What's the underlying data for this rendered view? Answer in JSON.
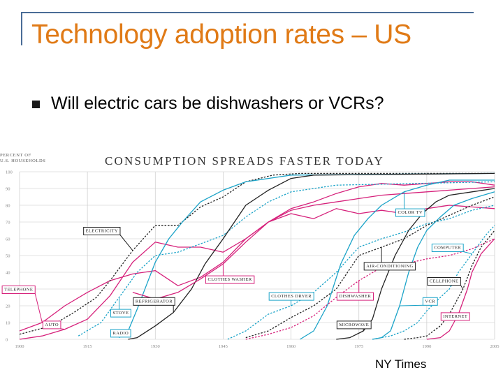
{
  "slide": {
    "title": "Technology adoption rates – US",
    "bullet": "Will electric cars be dishwashers or VCRs?",
    "credit": "NY Times"
  },
  "colors": {
    "title": "#e07a16",
    "frame": "#4a6d97",
    "black": "#222222",
    "pink": "#d6217b",
    "blue": "#1aa3c8"
  },
  "chart_data": {
    "type": "line",
    "title": "CONSUMPTION SPREADS FASTER TODAY",
    "ylabel_lines": [
      "PERCENT OF",
      "U.S. HOUSEHOLDS"
    ],
    "xlim": [
      1900,
      2005
    ],
    "ylim": [
      0,
      100
    ],
    "x_ticks": [
      1900,
      1915,
      1930,
      1945,
      1960,
      1975,
      1990,
      2005
    ],
    "y_ticks": [
      0,
      10,
      20,
      30,
      40,
      50,
      60,
      70,
      80,
      90,
      100
    ],
    "grid": true,
    "series": [
      {
        "name": "TELEPHONE",
        "color": "pink",
        "dashed": false,
        "points": [
          [
            1900,
            5
          ],
          [
            1905,
            10
          ],
          [
            1910,
            20
          ],
          [
            1915,
            28
          ],
          [
            1920,
            35
          ],
          [
            1925,
            39
          ],
          [
            1930,
            41
          ],
          [
            1935,
            32
          ],
          [
            1940,
            37
          ],
          [
            1945,
            46
          ],
          [
            1950,
            60
          ],
          [
            1955,
            70
          ],
          [
            1960,
            78
          ],
          [
            1965,
            82
          ],
          [
            1970,
            87
          ],
          [
            1975,
            91
          ],
          [
            1980,
            93
          ],
          [
            1985,
            92
          ],
          [
            1990,
            93
          ],
          [
            1995,
            94
          ],
          [
            2000,
            94
          ],
          [
            2005,
            92
          ]
        ]
      },
      {
        "name": "AUTO",
        "color": "pink",
        "dashed": false,
        "points": [
          [
            1900,
            0
          ],
          [
            1905,
            2
          ],
          [
            1910,
            6
          ],
          [
            1915,
            12
          ],
          [
            1920,
            26
          ],
          [
            1925,
            46
          ],
          [
            1930,
            58
          ],
          [
            1935,
            55
          ],
          [
            1940,
            55
          ],
          [
            1945,
            52
          ],
          [
            1950,
            60
          ],
          [
            1955,
            70
          ],
          [
            1960,
            77
          ],
          [
            1965,
            80
          ],
          [
            1970,
            82
          ],
          [
            1975,
            84
          ],
          [
            1980,
            86
          ],
          [
            1985,
            87
          ],
          [
            1990,
            88
          ],
          [
            1995,
            89
          ],
          [
            2000,
            90
          ],
          [
            2005,
            91
          ]
        ]
      },
      {
        "name": "ELECTRICITY",
        "color": "black",
        "dashed": true,
        "points": [
          [
            1900,
            3
          ],
          [
            1907,
            8
          ],
          [
            1912,
            16
          ],
          [
            1917,
            25
          ],
          [
            1920,
            35
          ],
          [
            1925,
            53
          ],
          [
            1930,
            68
          ],
          [
            1935,
            68
          ],
          [
            1940,
            79
          ],
          [
            1945,
            85
          ],
          [
            1950,
            94
          ],
          [
            1956,
            98
          ],
          [
            1962,
            99
          ],
          [
            2005,
            99
          ]
        ]
      },
      {
        "name": "RADIO",
        "color": "blue",
        "dashed": false,
        "points": [
          [
            1922,
            1
          ],
          [
            1924,
            5
          ],
          [
            1926,
            18
          ],
          [
            1928,
            32
          ],
          [
            1930,
            46
          ],
          [
            1933,
            60
          ],
          [
            1936,
            70
          ],
          [
            1940,
            82
          ],
          [
            1945,
            89
          ],
          [
            1950,
            94
          ],
          [
            1955,
            96
          ],
          [
            1960,
            98
          ],
          [
            2005,
            99
          ]
        ]
      },
      {
        "name": "STOVE",
        "color": "blue",
        "dashed": true,
        "points": [
          [
            1913,
            2
          ],
          [
            1918,
            10
          ],
          [
            1922,
            25
          ],
          [
            1926,
            40
          ],
          [
            1930,
            50
          ],
          [
            1935,
            52
          ],
          [
            1940,
            57
          ],
          [
            1945,
            62
          ],
          [
            1950,
            73
          ],
          [
            1955,
            82
          ],
          [
            1960,
            88
          ],
          [
            1965,
            90
          ],
          [
            1970,
            92
          ],
          [
            2005,
            94
          ]
        ]
      },
      {
        "name": "REFRIGERATOR",
        "color": "black",
        "dashed": false,
        "points": [
          [
            1924,
            0
          ],
          [
            1926,
            1
          ],
          [
            1930,
            8
          ],
          [
            1934,
            16
          ],
          [
            1938,
            30
          ],
          [
            1941,
            45
          ],
          [
            1945,
            60
          ],
          [
            1950,
            80
          ],
          [
            1955,
            89
          ],
          [
            1960,
            96
          ],
          [
            1965,
            98
          ],
          [
            2005,
            99
          ]
        ]
      },
      {
        "name": "CLOTHES WASHER",
        "color": "pink",
        "dashed": false,
        "points": [
          [
            1925,
            28
          ],
          [
            1930,
            24
          ],
          [
            1935,
            28
          ],
          [
            1940,
            36
          ],
          [
            1945,
            45
          ],
          [
            1950,
            58
          ],
          [
            1955,
            70
          ],
          [
            1960,
            75
          ],
          [
            1965,
            72
          ],
          [
            1970,
            78
          ],
          [
            1975,
            75
          ],
          [
            1980,
            77
          ],
          [
            1985,
            75
          ],
          [
            1990,
            78
          ],
          [
            1995,
            80
          ],
          [
            2000,
            79
          ],
          [
            2005,
            78
          ]
        ]
      },
      {
        "name": "CLOTHES DRYER",
        "color": "blue",
        "dashed": true,
        "points": [
          [
            1946,
            0
          ],
          [
            1950,
            5
          ],
          [
            1955,
            15
          ],
          [
            1960,
            20
          ],
          [
            1965,
            28
          ],
          [
            1970,
            40
          ],
          [
            1975,
            55
          ],
          [
            1980,
            60
          ],
          [
            1985,
            64
          ],
          [
            1990,
            69
          ],
          [
            1995,
            72
          ],
          [
            2000,
            77
          ],
          [
            2005,
            80
          ]
        ]
      },
      {
        "name": "AIR-CONDITIONING",
        "color": "black",
        "dashed": true,
        "points": [
          [
            1950,
            1
          ],
          [
            1955,
            5
          ],
          [
            1960,
            13
          ],
          [
            1965,
            20
          ],
          [
            1970,
            30
          ],
          [
            1975,
            50
          ],
          [
            1980,
            55
          ],
          [
            1985,
            60
          ],
          [
            1990,
            68
          ],
          [
            1995,
            74
          ],
          [
            2000,
            80
          ],
          [
            2005,
            85
          ]
        ]
      },
      {
        "name": "DISHWASHER",
        "color": "pink",
        "dashed": true,
        "points": [
          [
            1950,
            0
          ],
          [
            1955,
            3
          ],
          [
            1960,
            7
          ],
          [
            1965,
            14
          ],
          [
            1970,
            25
          ],
          [
            1975,
            35
          ],
          [
            1980,
            43
          ],
          [
            1985,
            45
          ],
          [
            1990,
            48
          ],
          [
            1995,
            50
          ],
          [
            2000,
            54
          ],
          [
            2005,
            60
          ]
        ]
      },
      {
        "name": "COLOR TV",
        "color": "blue",
        "dashed": false,
        "points": [
          [
            1962,
            0
          ],
          [
            1965,
            5
          ],
          [
            1968,
            20
          ],
          [
            1971,
            45
          ],
          [
            1974,
            62
          ],
          [
            1977,
            72
          ],
          [
            1980,
            80
          ],
          [
            1985,
            88
          ],
          [
            1990,
            92
          ],
          [
            1995,
            95
          ],
          [
            2000,
            95
          ],
          [
            2005,
            95
          ]
        ]
      },
      {
        "name": "MICROWAVE",
        "color": "black",
        "dashed": false,
        "points": [
          [
            1970,
            0
          ],
          [
            1973,
            1
          ],
          [
            1976,
            5
          ],
          [
            1978,
            12
          ],
          [
            1980,
            30
          ],
          [
            1983,
            50
          ],
          [
            1986,
            65
          ],
          [
            1989,
            75
          ],
          [
            1992,
            82
          ],
          [
            1995,
            86
          ],
          [
            2000,
            88
          ],
          [
            2005,
            90
          ]
        ]
      },
      {
        "name": "VCR",
        "color": "blue",
        "dashed": false,
        "points": [
          [
            1978,
            0
          ],
          [
            1980,
            1
          ],
          [
            1982,
            5
          ],
          [
            1984,
            20
          ],
          [
            1986,
            40
          ],
          [
            1988,
            55
          ],
          [
            1990,
            65
          ],
          [
            1993,
            73
          ],
          [
            1996,
            80
          ],
          [
            2000,
            84
          ],
          [
            2005,
            88
          ]
        ]
      },
      {
        "name": "COMPUTER",
        "color": "blue",
        "dashed": true,
        "points": [
          [
            1978,
            0
          ],
          [
            1982,
            2
          ],
          [
            1985,
            5
          ],
          [
            1988,
            10
          ],
          [
            1990,
            17
          ],
          [
            1993,
            25
          ],
          [
            1995,
            30
          ],
          [
            1997,
            40
          ],
          [
            2000,
            51
          ],
          [
            2003,
            62
          ],
          [
            2005,
            68
          ]
        ]
      },
      {
        "name": "CELLPHONE",
        "color": "black",
        "dashed": true,
        "points": [
          [
            1985,
            0
          ],
          [
            1988,
            1
          ],
          [
            1990,
            2
          ],
          [
            1993,
            8
          ],
          [
            1995,
            15
          ],
          [
            1998,
            30
          ],
          [
            2000,
            44
          ],
          [
            2002,
            55
          ],
          [
            2005,
            65
          ]
        ]
      },
      {
        "name": "INTERNET",
        "color": "pink",
        "dashed": false,
        "points": [
          [
            1990,
            0
          ],
          [
            1993,
            1
          ],
          [
            1995,
            5
          ],
          [
            1997,
            15
          ],
          [
            1999,
            30
          ],
          [
            2000,
            40
          ],
          [
            2002,
            51
          ],
          [
            2005,
            60
          ]
        ]
      }
    ],
    "labels": [
      {
        "text": "ELECTRICITY",
        "series": "ELECTRICITY",
        "anchor": [
          1914,
          65
        ]
      },
      {
        "text": "TELEPHONE",
        "series": "TELEPHONE",
        "anchor": [
          1896,
          30
        ]
      },
      {
        "text": "AUTO",
        "series": "AUTO",
        "anchor": [
          1905,
          9
        ]
      },
      {
        "text": "STOVE",
        "series": "STOVE",
        "anchor": [
          1920,
          16
        ]
      },
      {
        "text": "RADIO",
        "series": "RADIO",
        "anchor": [
          1920,
          4
        ]
      },
      {
        "text": "REFRIGERATOR",
        "series": "REFRIGERATOR",
        "anchor": [
          1925,
          23
        ]
      },
      {
        "text": "CLOTHES WASHER",
        "series": "CLOTHES WASHER",
        "anchor": [
          1941,
          36
        ]
      },
      {
        "text": "CLOTHES DRYER",
        "series": "CLOTHES DRYER",
        "anchor": [
          1955,
          26
        ]
      },
      {
        "text": "AIR-CONDITIONING",
        "series": "AIR-CONDITIONING",
        "anchor": [
          1976,
          44
        ]
      },
      {
        "text": "DISHWASHER",
        "series": "DISHWASHER",
        "anchor": [
          1970,
          26
        ]
      },
      {
        "text": "MICROWAVE",
        "series": "MICROWAVE",
        "anchor": [
          1970,
          9
        ]
      },
      {
        "text": "COLOR TV",
        "series": "COLOR TV",
        "anchor": [
          1983,
          76
        ]
      },
      {
        "text": "COMPUTER",
        "series": "COMPUTER",
        "anchor": [
          1991,
          55
        ]
      },
      {
        "text": "CELLPHONE",
        "series": "CELLPHONE",
        "anchor": [
          1990,
          35
        ]
      },
      {
        "text": "VCR",
        "series": "VCR",
        "anchor": [
          1989,
          23
        ]
      },
      {
        "text": "INTERNET",
        "series": "INTERNET",
        "anchor": [
          1993,
          14
        ]
      }
    ]
  }
}
